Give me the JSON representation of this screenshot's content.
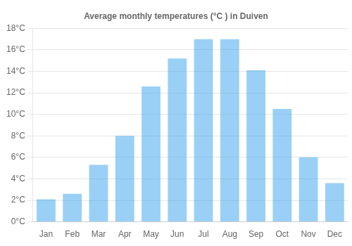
{
  "chart_data": {
    "type": "bar",
    "title": "Average monthly temperatures (°C ) in Duiven",
    "categories": [
      "Jan",
      "Feb",
      "Mar",
      "Apr",
      "May",
      "Jun",
      "Jul",
      "Aug",
      "Sep",
      "Oct",
      "Nov",
      "Dec"
    ],
    "values": [
      2.1,
      2.6,
      5.3,
      8.0,
      12.6,
      15.2,
      17.0,
      17.0,
      14.1,
      10.5,
      6.0,
      3.6
    ],
    "ylim": [
      0,
      18
    ],
    "yticks": [
      {
        "value": 0,
        "label": "0°C"
      },
      {
        "value": 2,
        "label": "2°C"
      },
      {
        "value": 4,
        "label": "4°C"
      },
      {
        "value": 6,
        "label": "6°C"
      },
      {
        "value": 8,
        "label": "8°C"
      },
      {
        "value": 10,
        "label": "10°C"
      },
      {
        "value": 12,
        "label": "12°C"
      },
      {
        "value": 14,
        "label": "14°C"
      },
      {
        "value": 16,
        "label": "16°C"
      },
      {
        "value": 18,
        "label": "18°C"
      }
    ],
    "grid": true
  }
}
